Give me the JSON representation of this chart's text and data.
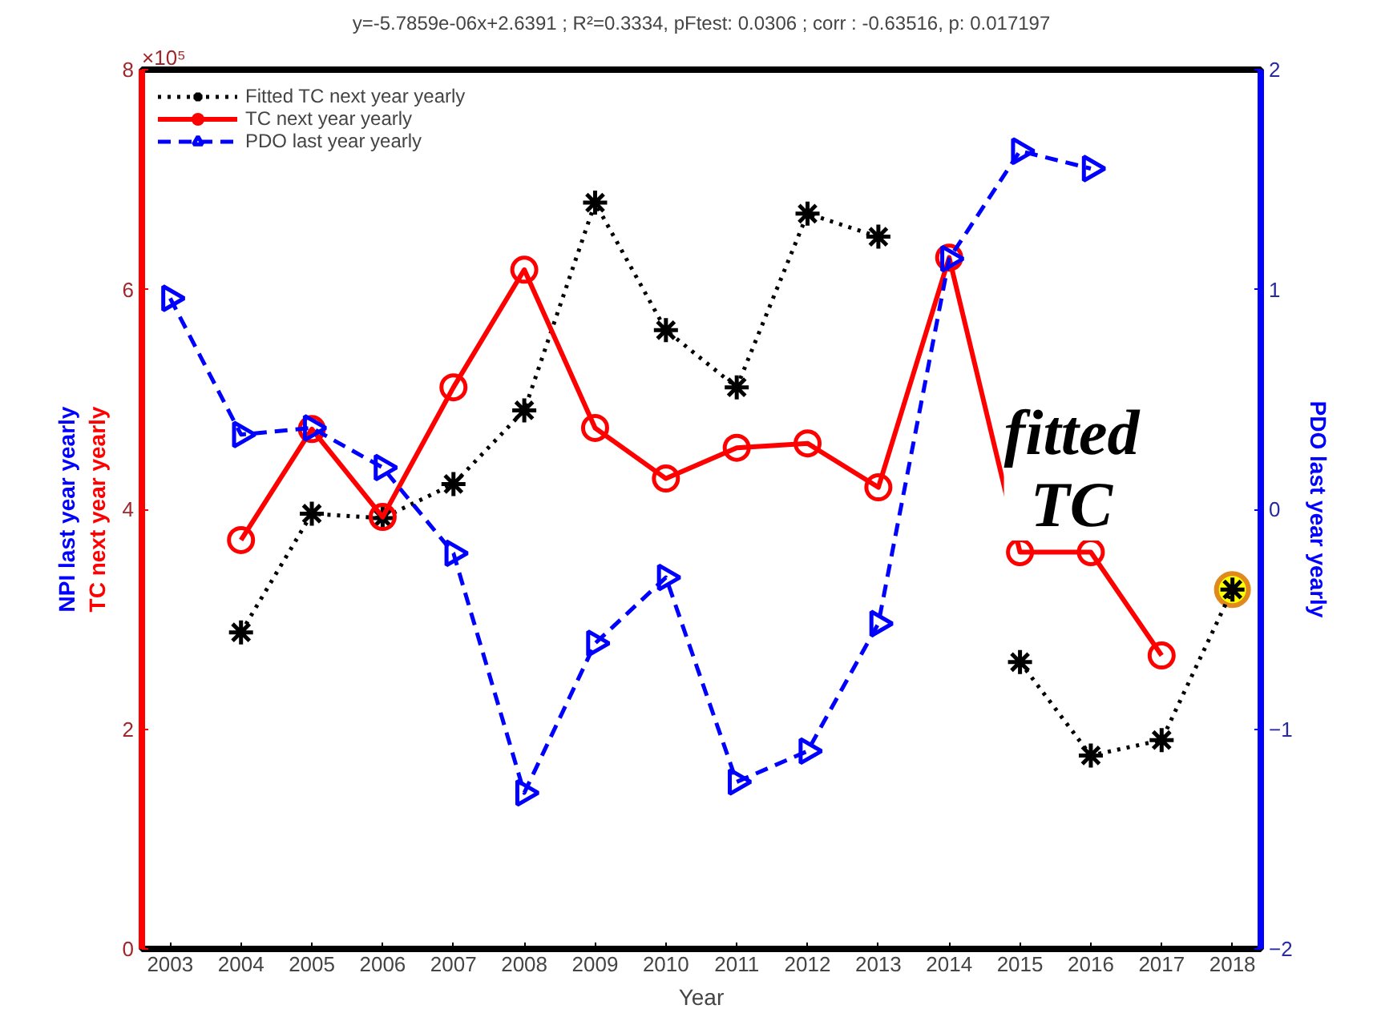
{
  "chart_data": {
    "type": "line",
    "title": "y=-5.7859e-06x+2.6391 ; R²=0.3334, pFtest: 0.0306 ; corr : -0.63516, p: 0.017197",
    "xlabel": "Year",
    "ylabel": "TC next year yearly",
    "y2label": "PDO last year yearly",
    "annotations": [
      "×10⁵",
      "NPI last year yearly",
      "fitted\nTC"
    ],
    "x": [
      2003,
      2004,
      2005,
      2006,
      2007,
      2008,
      2009,
      2010,
      2011,
      2012,
      2013,
      2014,
      2015,
      2016,
      2017,
      2018
    ],
    "xlim": [
      2002.6,
      2018.4
    ],
    "xticks": [
      2003,
      2004,
      2005,
      2006,
      2007,
      2008,
      2009,
      2010,
      2011,
      2012,
      2013,
      2014,
      2015,
      2016,
      2017,
      2018
    ],
    "ylim": [
      0,
      8
    ],
    "yticks": [
      0,
      2,
      4,
      6,
      8
    ],
    "y2lim": [
      -2,
      2
    ],
    "y2ticks": [
      -2,
      -1,
      0,
      1,
      2
    ],
    "grid": false,
    "legend": "top left",
    "series": [
      {
        "name": "Fitted TC next year yearly",
        "color": "#000000",
        "marker": "cross",
        "line_style": "dotted",
        "values": [
          null,
          2.88,
          3.96,
          3.92,
          4.23,
          4.9,
          6.79,
          5.63,
          5.11,
          6.69,
          6.48,
          null,
          2.61,
          1.76,
          1.9,
          3.27
        ]
      },
      {
        "name": "TC next year yearly",
        "color": "#ff0000",
        "marker": "circle",
        "line_style": "solid",
        "values": [
          null,
          3.72,
          4.73,
          3.93,
          5.11,
          6.18,
          4.74,
          4.28,
          4.56,
          4.6,
          4.2,
          6.29,
          3.61,
          3.61,
          2.67,
          null
        ]
      },
      {
        "name": "PDO last year yearly",
        "axis": "y2",
        "color": "#0000ff",
        "marker": "triangle",
        "line_style": "dashed",
        "values": [
          0.96,
          0.34,
          0.37,
          0.19,
          -0.2,
          -1.29,
          -0.61,
          -0.31,
          -1.24,
          -1.1,
          -0.52,
          1.14,
          1.63,
          1.55,
          null,
          null
        ]
      },
      {
        "type": "scatter",
        "color": "#e08a1e",
        "marker": "circle",
        "x": [
          2018
        ],
        "values": [
          3.27
        ]
      }
    ]
  }
}
